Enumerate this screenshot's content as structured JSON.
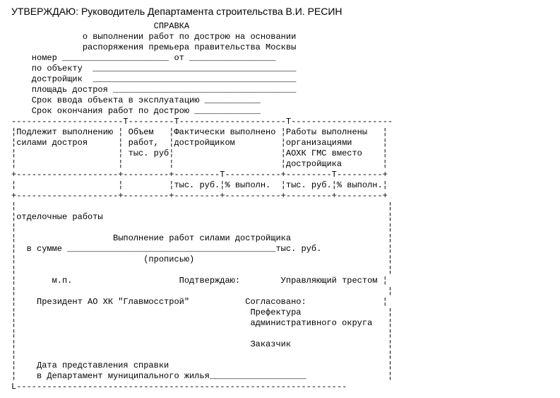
{
  "heading": "УТВЕРЖДАЮ: Руководитель Департамента строительства В.И. РЕСИН",
  "preblock": "                            СПРАВКА\n              о выполнении работ по дострою на основании\n              распоряжения премьера правительства Москвы\n    номер _____________________ от _________________\n    по объекту  ________________________________________\n    достройщик  ________________________________________\n    площадь достроя ____________________________________\n    Срок ввода объекта в эксплуатацию ___________\n    Срок окончания работ по дострою _____________\n----------------------T---------T---------------------T--------------------\n¦Подлежит выполнению ¦ Объем   ¦Фактически выполнено ¦Работы выполнены   ¦\n¦силами достроя      ¦ работ,  ¦достройщиком         ¦организациями      ¦\n¦                    ¦ тыс. руб¦                     ¦АОХК ГМС вместо    ¦\n¦                    ¦         ¦                     ¦достройщика        ¦\n+--------------------+---------+---------T-----------+---------T---------+\n¦                    ¦         ¦тыс. руб.¦% выполн.  ¦тыс. руб.¦% выполн.¦\n+--------------------+---------+---------+-----------+---------+---------+\n¦                                                                         ¦\n¦отделочные работы                                                        ¦\n¦                                                                         ¦\n¦                   Выполнение работ силами достройщика                   ¦\n¦  в сумме _________________________________________тыс. руб.             ¦\n¦                         (прописью)                                      ¦\n¦                                                                         ¦\n¦       м.п.                     Подтверждаю:        Управляющий трестом ¦\n¦                                                                         ¦\n¦    Президент АО ХК \"Главмосстрой\"           Согласовано:               ¦\n¦                                              Префектура                 ¦\n¦                                              административного округа   ¦\n¦                                                                         ¦\n¦                                              Заказчик                   ¦\n¦                                                                         ¦\n¦    Дата представления справки                                           ¦\n¦    в Департамент муниципального жилья___________________                ¦\nL-----------------------------------------------------------------"
}
